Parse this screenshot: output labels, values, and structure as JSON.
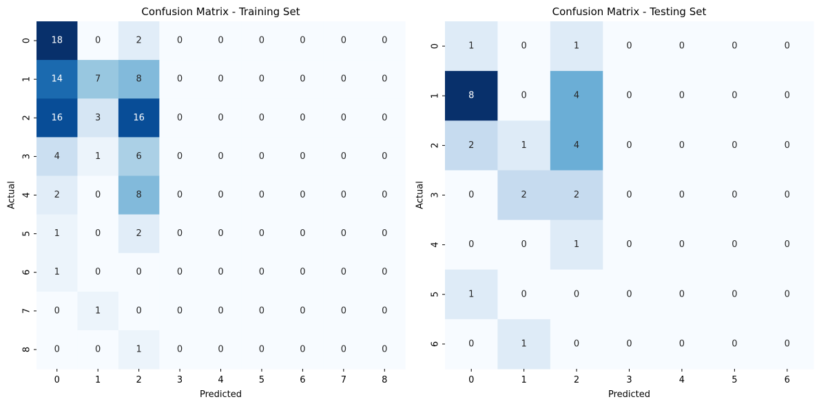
{
  "chart_data": [
    {
      "type": "heatmap",
      "title": "Confusion Matrix - Training Set",
      "xlabel": "Predicted",
      "ylabel": "Actual",
      "x_categories": [
        "0",
        "1",
        "2",
        "3",
        "4",
        "5",
        "6",
        "7",
        "8"
      ],
      "y_categories": [
        "0",
        "1",
        "2",
        "3",
        "4",
        "5",
        "6",
        "7",
        "8"
      ],
      "values": [
        [
          18,
          0,
          2,
          0,
          0,
          0,
          0,
          0,
          0
        ],
        [
          14,
          7,
          8,
          0,
          0,
          0,
          0,
          0,
          0
        ],
        [
          16,
          3,
          16,
          0,
          0,
          0,
          0,
          0,
          0
        ],
        [
          4,
          1,
          6,
          0,
          0,
          0,
          0,
          0,
          0
        ],
        [
          2,
          0,
          8,
          0,
          0,
          0,
          0,
          0,
          0
        ],
        [
          1,
          0,
          2,
          0,
          0,
          0,
          0,
          0,
          0
        ],
        [
          1,
          0,
          0,
          0,
          0,
          0,
          0,
          0,
          0
        ],
        [
          0,
          1,
          0,
          0,
          0,
          0,
          0,
          0,
          0
        ],
        [
          0,
          0,
          1,
          0,
          0,
          0,
          0,
          0,
          0
        ]
      ],
      "colormap": "Blues",
      "colorbar": false,
      "annotated": true
    },
    {
      "type": "heatmap",
      "title": "Confusion Matrix - Testing Set",
      "xlabel": "Predicted",
      "ylabel": "Actual",
      "x_categories": [
        "0",
        "1",
        "2",
        "3",
        "4",
        "5",
        "6"
      ],
      "y_categories": [
        "0",
        "1",
        "2",
        "3",
        "4",
        "5",
        "6"
      ],
      "values": [
        [
          1,
          0,
          1,
          0,
          0,
          0,
          0
        ],
        [
          8,
          0,
          4,
          0,
          0,
          0,
          0
        ],
        [
          2,
          1,
          4,
          0,
          0,
          0,
          0
        ],
        [
          0,
          2,
          2,
          0,
          0,
          0,
          0
        ],
        [
          0,
          0,
          1,
          0,
          0,
          0,
          0
        ],
        [
          1,
          0,
          0,
          0,
          0,
          0,
          0
        ],
        [
          0,
          1,
          0,
          0,
          0,
          0,
          0
        ]
      ],
      "colormap": "Blues",
      "colorbar": false,
      "annotated": true
    }
  ]
}
